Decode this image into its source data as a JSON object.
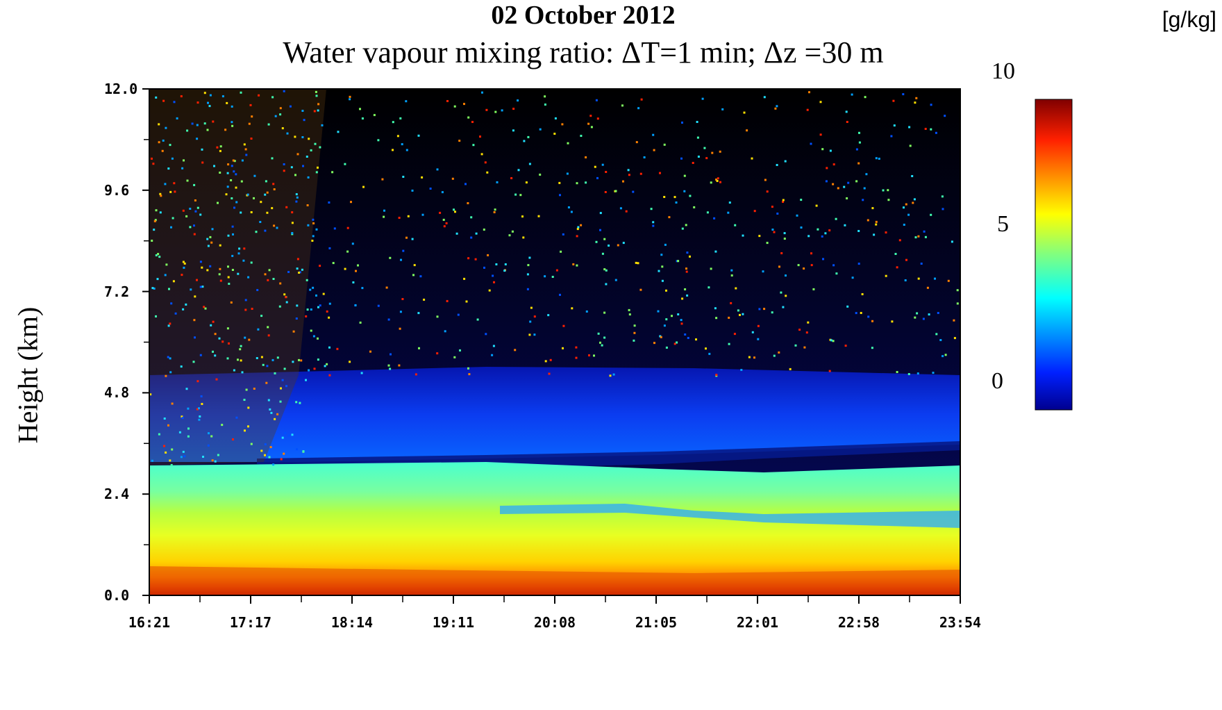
{
  "chart_data": {
    "type": "heatmap",
    "title": "02 October 2012",
    "subtitle": "Water vapour mixing ratio: ΔT=1 min; Δz =30 m",
    "ylabel": "Height (km)",
    "xlabel": "",
    "x_ticks": [
      "16:21",
      "17:17",
      "18:14",
      "19:11",
      "20:08",
      "21:05",
      "22:01",
      "22:58",
      "23:54"
    ],
    "y_ticks": [
      "0.0",
      "2.4",
      "4.8",
      "7.2",
      "9.6",
      "12.0"
    ],
    "ylim": [
      0,
      12
    ],
    "xlim": [
      "16:21",
      "23:54"
    ],
    "colorbar": {
      "unit": "[g/kg]",
      "ticks": [
        "0",
        "5",
        "10"
      ],
      "range": [
        0,
        10
      ],
      "colormap": "jet"
    },
    "features": [
      {
        "description": "moist layer",
        "height_km": [
          0,
          0.8
        ],
        "value_gkg": 8
      },
      {
        "description": "boundary layer top",
        "height_km": 3.2
      }
    ]
  }
}
